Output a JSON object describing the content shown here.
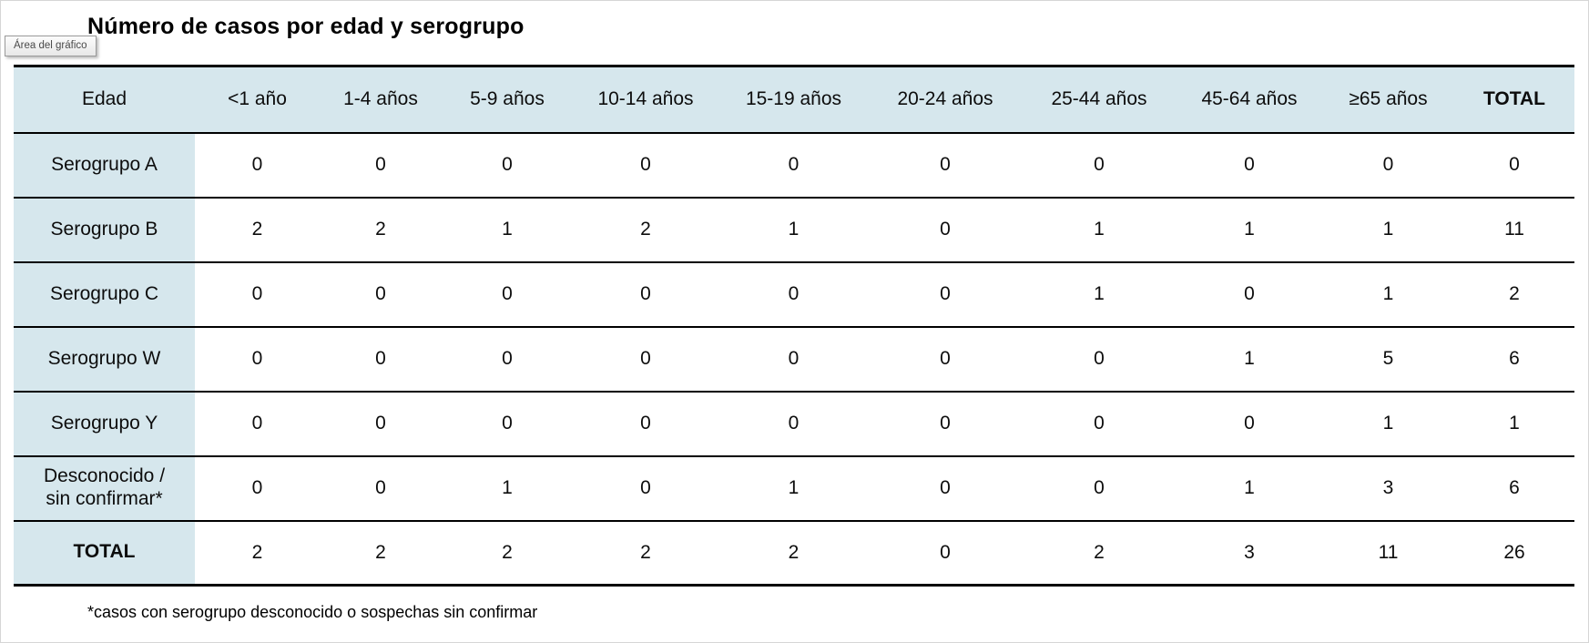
{
  "window": {
    "chart_area_tooltip": "Área del gráfico"
  },
  "chart_data": {
    "type": "table",
    "title": "Número de casos por edad y serogrupo",
    "columns": [
      "Edad",
      "<1 año",
      "1-4 años",
      "5-9 años",
      "10-14 años",
      "15-19 años",
      "20-24 años",
      "25-44 años",
      "45-64 años",
      "≥65 años",
      "TOTAL"
    ],
    "rows": [
      {
        "label": "Serogrupo A",
        "values": [
          0,
          0,
          0,
          0,
          0,
          0,
          0,
          0,
          0,
          0
        ]
      },
      {
        "label": "Serogrupo B",
        "values": [
          2,
          2,
          1,
          2,
          1,
          0,
          1,
          1,
          1,
          11
        ]
      },
      {
        "label": "Serogrupo C",
        "values": [
          0,
          0,
          0,
          0,
          0,
          0,
          1,
          0,
          1,
          2
        ]
      },
      {
        "label": "Serogrupo W",
        "values": [
          0,
          0,
          0,
          0,
          0,
          0,
          0,
          1,
          5,
          6
        ]
      },
      {
        "label": "Serogrupo Y",
        "values": [
          0,
          0,
          0,
          0,
          0,
          0,
          0,
          0,
          1,
          1
        ]
      },
      {
        "label": "Desconocido /\nsin confirmar*",
        "values": [
          0,
          0,
          1,
          0,
          1,
          0,
          0,
          1,
          3,
          6
        ]
      },
      {
        "label": "TOTAL",
        "values": [
          2,
          2,
          2,
          2,
          2,
          0,
          2,
          3,
          11,
          26
        ]
      }
    ],
    "footnote": "*casos con serogrupo desconocido o sospechas sin confirmar",
    "layout_hints": {
      "header_fill": "#d6e7ed",
      "row_label_fill": "#d6e7ed",
      "grid": "horizontal-only",
      "legend": "none"
    }
  }
}
